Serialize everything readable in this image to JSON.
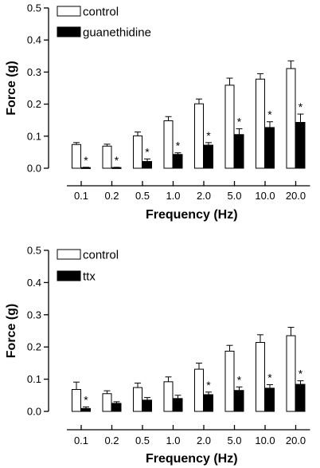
{
  "chart_data": [
    {
      "type": "bar",
      "categories": [
        "0.1",
        "0.2",
        "0.5",
        "1.0",
        "2.0",
        "5.0",
        "10.0",
        "20.0"
      ],
      "series": [
        {
          "name": "control",
          "color": "#ffffff",
          "values": [
            0.074,
            0.069,
            0.101,
            0.148,
            0.201,
            0.259,
            0.278,
            0.311
          ],
          "errors": [
            0.006,
            0.006,
            0.012,
            0.013,
            0.015,
            0.022,
            0.017,
            0.024
          ]
        },
        {
          "name": "guanethidine",
          "color": "#000000",
          "values": [
            0.002,
            0.002,
            0.021,
            0.043,
            0.072,
            0.105,
            0.127,
            0.143
          ],
          "errors": [
            0.001,
            0.001,
            0.008,
            0.005,
            0.008,
            0.018,
            0.018,
            0.026
          ]
        }
      ],
      "significance": [
        "*",
        "*",
        "*",
        "*",
        "*",
        "*",
        "*",
        "*"
      ],
      "xlabel": "Frequency (Hz)",
      "ylabel": "Force (g)",
      "ylim": [
        0,
        0.5
      ],
      "yticks": [
        "0.0",
        "0.1",
        "0.2",
        "0.3",
        "0.4",
        "0.5"
      ],
      "legend": "top-left",
      "grid": false
    },
    {
      "type": "bar",
      "categories": [
        "0.1",
        "0.2",
        "0.5",
        "1.0",
        "2.0",
        "5.0",
        "10.0",
        "20.0"
      ],
      "series": [
        {
          "name": "control",
          "color": "#ffffff",
          "values": [
            0.068,
            0.055,
            0.074,
            0.092,
            0.131,
            0.187,
            0.214,
            0.235
          ],
          "errors": [
            0.023,
            0.009,
            0.014,
            0.015,
            0.019,
            0.018,
            0.024,
            0.026
          ]
        },
        {
          "name": "ttx",
          "color": "#000000",
          "values": [
            0.009,
            0.025,
            0.035,
            0.04,
            0.052,
            0.065,
            0.072,
            0.084
          ]
        }
      ],
      "errors_ttx": [
        0.005,
        0.005,
        0.008,
        0.01,
        0.008,
        0.011,
        0.011,
        0.011
      ],
      "significance": [
        "*",
        "",
        "",
        "",
        "*",
        "*",
        "*",
        "*"
      ],
      "xlabel": "Frequency (Hz)",
      "ylabel": "Force (g)",
      "ylim": [
        0,
        0.5
      ],
      "yticks": [
        "0.0",
        "0.1",
        "0.2",
        "0.3",
        "0.4",
        "0.5"
      ],
      "legend": "top-left",
      "grid": false
    }
  ]
}
